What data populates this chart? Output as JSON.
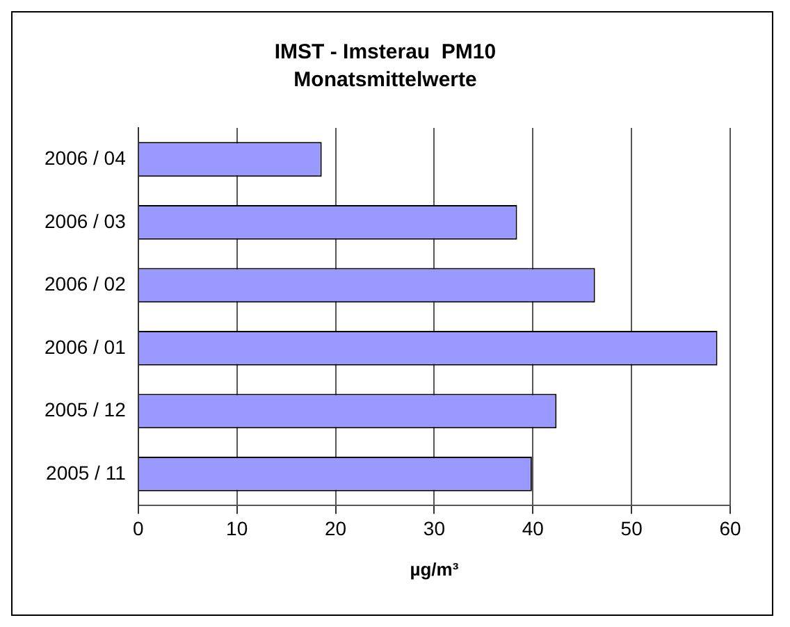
{
  "chart_data": {
    "type": "bar",
    "orientation": "horizontal",
    "title": "IMST - Imsterau  PM10",
    "subtitle": "Monatsmittelwerte",
    "xlabel": "µg/m³",
    "categories": [
      "2006 / 04",
      "2006 / 03",
      "2006 / 02",
      "2006 / 01",
      "2005 / 12",
      "2005 / 11"
    ],
    "values": [
      18.6,
      38.4,
      46.3,
      58.7,
      42.4,
      39.9
    ],
    "color": "#9999ff",
    "xlim": [
      0,
      60
    ],
    "xticks": [
      0,
      10,
      20,
      30,
      40,
      50,
      60
    ],
    "grid": "x",
    "legend": false
  }
}
